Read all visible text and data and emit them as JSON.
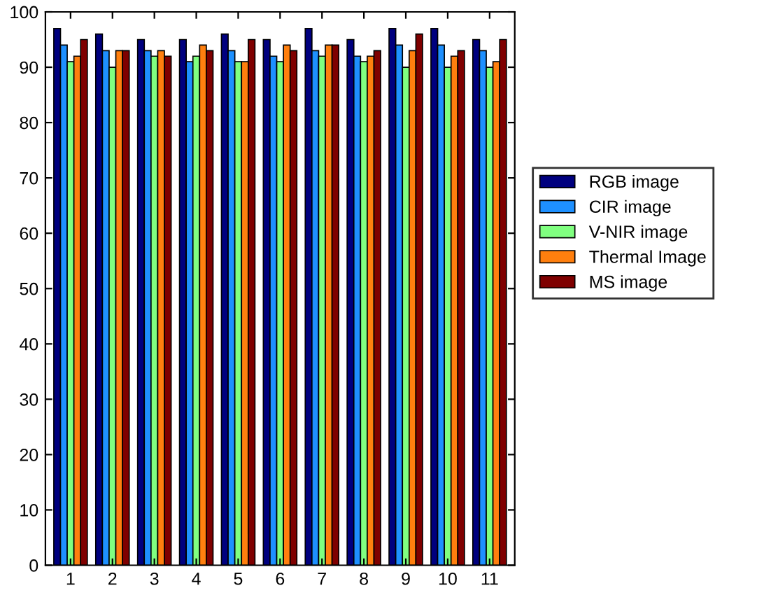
{
  "chart_data": {
    "type": "bar",
    "categories": [
      "1",
      "2",
      "3",
      "4",
      "5",
      "6",
      "7",
      "8",
      "9",
      "10",
      "11"
    ],
    "series": [
      {
        "name": "RGB image",
        "color": "#00007f",
        "values": [
          97,
          96,
          95,
          95,
          96,
          95,
          97,
          95,
          97,
          97,
          95
        ]
      },
      {
        "name": "CIR image",
        "color": "#1e90ff",
        "values": [
          94,
          93,
          93,
          91,
          93,
          92,
          93,
          92,
          94,
          94,
          93
        ]
      },
      {
        "name": "V-NIR image",
        "color": "#80ff80",
        "values": [
          91,
          90,
          92,
          92,
          91,
          91,
          92,
          91,
          90,
          90,
          90
        ]
      },
      {
        "name": "Thermal Image",
        "color": "#ff7f0e",
        "values": [
          92,
          93,
          93,
          94,
          91,
          94,
          94,
          92,
          93,
          92,
          91
        ]
      },
      {
        "name": "MS image",
        "color": "#7f0000",
        "values": [
          95,
          93,
          92,
          93,
          95,
          93,
          94,
          93,
          96,
          93,
          95
        ]
      }
    ],
    "ylim": [
      0,
      100
    ],
    "yticks": [
      0,
      10,
      20,
      30,
      40,
      50,
      60,
      70,
      80,
      90,
      100
    ],
    "grid": false,
    "legend": "right"
  }
}
